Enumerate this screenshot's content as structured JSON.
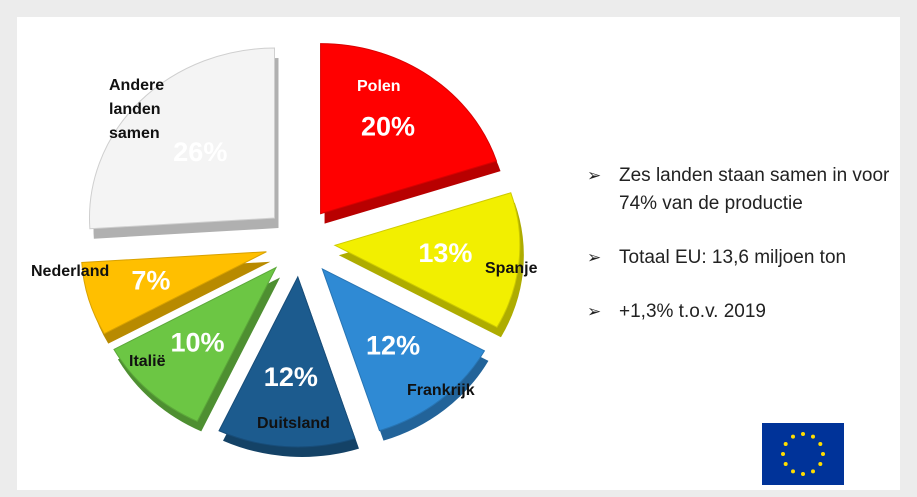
{
  "chart_data": {
    "type": "pie",
    "categories": [
      "Polen",
      "Spanje",
      "Frankrijk",
      "Duitsland",
      "Italië",
      "Nederland",
      "Andere landen samen"
    ],
    "values": [
      20,
      13,
      12,
      12,
      10,
      7,
      26
    ],
    "value_labels": [
      "20%",
      "13%",
      "12%",
      "12%",
      "10%",
      "7%",
      "26%"
    ],
    "colors": [
      "#ff0000",
      "#f2ef00",
      "#2f8ad4",
      "#1c5b8e",
      "#6cc644",
      "#ffbf00",
      "#f4f4f4"
    ]
  },
  "bullets": [
    "Zes landen staan samen in voor 74% van de productie",
    "Totaal EU: 13,6 miljoen ton",
    "+1,3% t.o.v. 2019"
  ]
}
